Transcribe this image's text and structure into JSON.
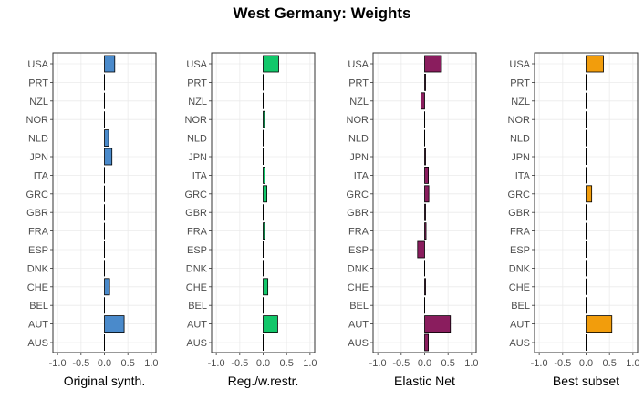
{
  "chart_data": {
    "type": "bar",
    "orientation": "horizontal",
    "title": "West Germany: Weights",
    "categories": [
      "USA",
      "PRT",
      "NZL",
      "NOR",
      "NLD",
      "JPN",
      "ITA",
      "GRC",
      "GBR",
      "FRA",
      "ESP",
      "DNK",
      "CHE",
      "BEL",
      "AUT",
      "AUS"
    ],
    "xlim": [
      -1.1,
      1.1
    ],
    "xticks": [
      "-1.0",
      "-0.5",
      "0.0",
      "0.5",
      "1.0"
    ],
    "grid": true,
    "panels": [
      {
        "xlabel": "Original synth.",
        "color": "#4A8ACB",
        "values": [
          0.22,
          0.0,
          0.0,
          0.0,
          0.09,
          0.16,
          0.0,
          0.0,
          0.0,
          0.0,
          0.0,
          0.0,
          0.11,
          0.0,
          0.42,
          0.0
        ]
      },
      {
        "xlabel": "Reg./w.restr.",
        "color": "#12C76A",
        "values": [
          0.33,
          0.0,
          0.0,
          0.03,
          0.0,
          0.0,
          0.04,
          0.08,
          0.0,
          0.03,
          0.0,
          0.0,
          0.1,
          0.0,
          0.31,
          0.0
        ]
      },
      {
        "xlabel": "Elastic Net",
        "color": "#8A1D5E",
        "values": [
          0.36,
          0.02,
          -0.08,
          0.0,
          0.0,
          0.02,
          0.08,
          0.09,
          0.02,
          0.03,
          -0.15,
          0.0,
          0.02,
          0.0,
          0.55,
          0.08
        ]
      },
      {
        "xlabel": "Best subset",
        "color": "#F29D0C",
        "values": [
          0.37,
          0.0,
          0.0,
          0.0,
          0.0,
          0.0,
          0.0,
          0.12,
          0.0,
          0.0,
          0.0,
          0.0,
          0.0,
          0.0,
          0.55,
          0.0
        ]
      }
    ]
  }
}
